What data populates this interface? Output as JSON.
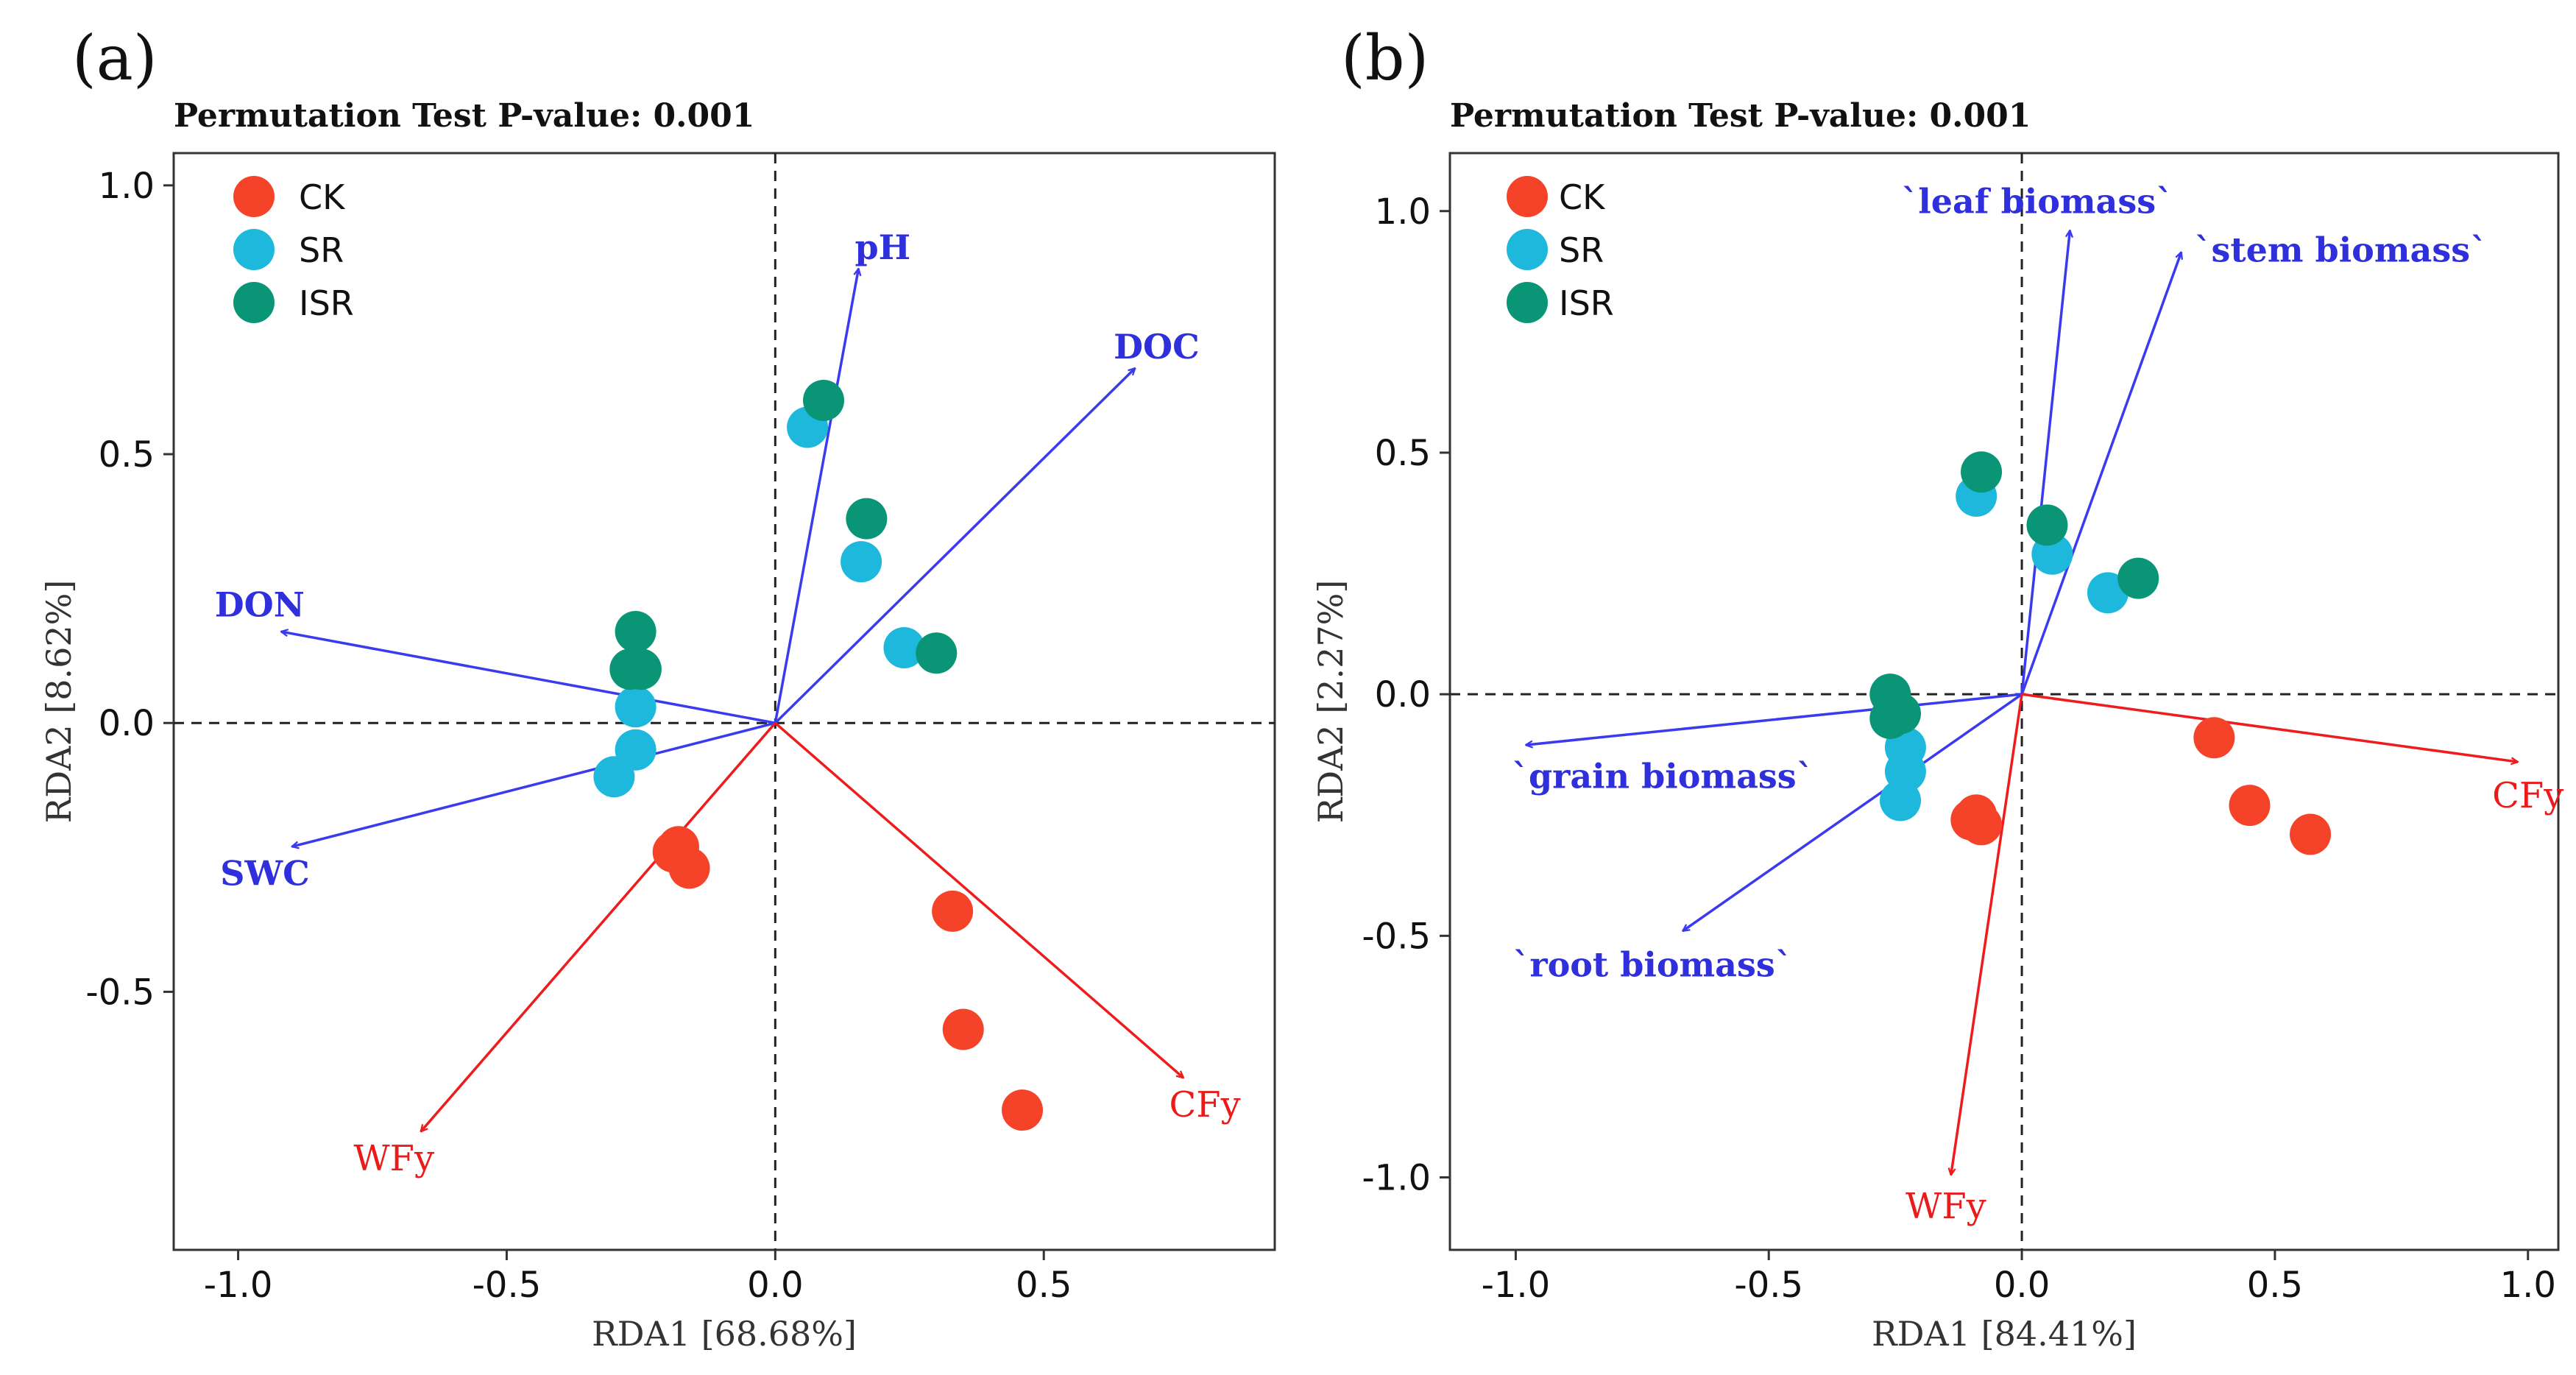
{
  "colors": {
    "CK": "#f5432a",
    "SR": "#1eb8dc",
    "ISR": "#0b9577",
    "env_arrow": "#3a3aee",
    "env_text": "#2f2fdc",
    "resp_arrow": "#ee1c1c",
    "resp_text": "#ea1b1b"
  },
  "chart_data": [
    {
      "type": "scatter",
      "panel": "(a)",
      "title": "Permutation Test P-value: 0.001",
      "xlabel": "RDA1 [68.68%]",
      "ylabel": "RDA2 [8.62%]",
      "xlim": [
        -1.12,
        0.93
      ],
      "ylim": [
        -0.98,
        1.06
      ],
      "xticks": [
        "-1.0",
        "-0.5",
        "0.0",
        "0.5"
      ],
      "xtick_values": [
        -1.0,
        -0.5,
        0.0,
        0.5
      ],
      "yticks": [
        "1.0",
        "0.5",
        "0.0",
        "-0.5"
      ],
      "ytick_values": [
        1.0,
        0.5,
        0.0,
        -0.5
      ],
      "legend": [
        "CK",
        "SR",
        "ISR"
      ],
      "series": [
        {
          "name": "CK",
          "points": [
            [
              -0.18,
              -0.23
            ],
            [
              -0.19,
              -0.24
            ],
            [
              -0.16,
              -0.27
            ],
            [
              0.33,
              -0.35
            ],
            [
              0.35,
              -0.57
            ],
            [
              0.46,
              -0.72
            ]
          ]
        },
        {
          "name": "SR",
          "points": [
            [
              0.06,
              0.55
            ],
            [
              0.16,
              0.3
            ],
            [
              0.24,
              0.14
            ],
            [
              -0.26,
              0.03
            ],
            [
              -0.26,
              -0.05
            ],
            [
              -0.3,
              -0.1
            ]
          ]
        },
        {
          "name": "ISR",
          "points": [
            [
              0.09,
              0.6
            ],
            [
              0.17,
              0.38
            ],
            [
              0.3,
              0.13
            ],
            [
              -0.26,
              0.17
            ],
            [
              -0.27,
              0.1
            ],
            [
              -0.25,
              0.1
            ]
          ]
        }
      ],
      "env_arrows": [
        {
          "label": "pH",
          "x": 0.155,
          "y": 0.845,
          "lx": 0.2,
          "ly": 0.885
        },
        {
          "label": "DOC",
          "x": 0.67,
          "y": 0.66,
          "lx": 0.71,
          "ly": 0.7
        },
        {
          "label": "DON",
          "x": -0.92,
          "y": 0.17,
          "lx": -0.96,
          "ly": 0.22
        },
        {
          "label": "SWC",
          "x": -0.9,
          "y": -0.23,
          "lx": -0.95,
          "ly": -0.28
        }
      ],
      "resp_arrows": [
        {
          "label": "WFy",
          "x": -0.66,
          "y": -0.76,
          "lx": -0.71,
          "ly": -0.81
        },
        {
          "label": "CFy",
          "x": 0.76,
          "y": -0.66,
          "lx": 0.8,
          "ly": -0.71
        }
      ]
    },
    {
      "type": "scatter",
      "panel": "(b)",
      "title": "Permutation Test P-value: 0.001",
      "xlabel": "RDA1 [84.41%]",
      "ylabel": "RDA2 [2.27%]",
      "xlim": [
        -1.13,
        1.06
      ],
      "ylim": [
        -1.15,
        1.12
      ],
      "xticks": [
        "-1.0",
        "-0.5",
        "0.0",
        "0.5",
        "1.0"
      ],
      "xtick_values": [
        -1.0,
        -0.5,
        0.0,
        0.5,
        1.0
      ],
      "yticks": [
        "1.0",
        "0.5",
        "0.0",
        "-0.5",
        "-1.0"
      ],
      "ytick_values": [
        1.0,
        0.5,
        0.0,
        -0.5,
        -1.0
      ],
      "legend": [
        "CK",
        "SR",
        "ISR"
      ],
      "series": [
        {
          "name": "CK",
          "points": [
            [
              -0.09,
              -0.25
            ],
            [
              -0.1,
              -0.26
            ],
            [
              -0.08,
              -0.27
            ],
            [
              0.38,
              -0.09
            ],
            [
              0.45,
              -0.23
            ],
            [
              0.57,
              -0.29
            ]
          ]
        },
        {
          "name": "SR",
          "points": [
            [
              -0.09,
              0.41
            ],
            [
              0.06,
              0.29
            ],
            [
              0.17,
              0.21
            ],
            [
              -0.23,
              -0.11
            ],
            [
              -0.23,
              -0.16
            ],
            [
              -0.24,
              -0.22
            ]
          ]
        },
        {
          "name": "ISR",
          "points": [
            [
              -0.08,
              0.46
            ],
            [
              0.05,
              0.35
            ],
            [
              0.23,
              0.24
            ],
            [
              -0.26,
              0.0
            ],
            [
              -0.26,
              -0.05
            ],
            [
              -0.24,
              -0.04
            ]
          ]
        }
      ],
      "env_arrows": [
        {
          "label": "`leaf biomass`",
          "x": 0.095,
          "y": 0.96,
          "lx": 0.03,
          "ly": 1.02
        },
        {
          "label": "`stem biomass`",
          "x": 0.315,
          "y": 0.915,
          "lx": 0.63,
          "ly": 0.92
        },
        {
          "label": "`grain biomass`",
          "x": -0.98,
          "y": -0.105,
          "lx": -0.71,
          "ly": -0.17
        },
        {
          "label": "`root biomass`",
          "x": -0.67,
          "y": -0.49,
          "lx": -0.73,
          "ly": -0.56
        }
      ],
      "resp_arrows": [
        {
          "label": "WFy",
          "x": -0.14,
          "y": -0.995,
          "lx": -0.15,
          "ly": -1.06
        },
        {
          "label": "CFy",
          "x": 0.98,
          "y": -0.14,
          "lx": 1.0,
          "ly": -0.21
        }
      ]
    }
  ]
}
